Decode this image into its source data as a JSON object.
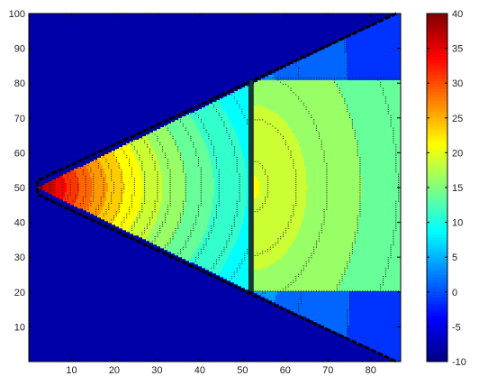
{
  "chart_data": {
    "type": "heatmap",
    "subtype": "filled-contour",
    "xlim": [
      0,
      87
    ],
    "ylim": [
      0,
      100
    ],
    "x_ticks": [
      10,
      20,
      30,
      40,
      50,
      60,
      70,
      80
    ],
    "y_ticks": [
      10,
      20,
      30,
      40,
      50,
      60,
      70,
      80,
      90,
      100
    ],
    "background_value": -10,
    "colorbar": {
      "min": -10,
      "max": 40,
      "ticks": [
        -10,
        -5,
        0,
        5,
        10,
        15,
        20,
        25,
        30,
        35,
        40
      ],
      "colormap": "jet"
    },
    "wedge": {
      "apex": [
        2,
        50
      ],
      "edge_at_x86_upper": 100,
      "edge_at_x86_lower": 0
    },
    "barrier": {
      "x": 52,
      "y_range": [
        20,
        81
      ]
    },
    "source_value": 40,
    "second_peak": {
      "x": 52,
      "y": 50,
      "value": 21
    },
    "contour_levels": [
      -10,
      -7.5,
      -5,
      -2.5,
      0,
      2.5,
      5,
      7.5,
      10,
      12.5,
      15,
      17.5,
      20,
      22.5,
      25,
      27.5,
      30,
      32.5,
      35,
      37.5,
      40
    ]
  }
}
